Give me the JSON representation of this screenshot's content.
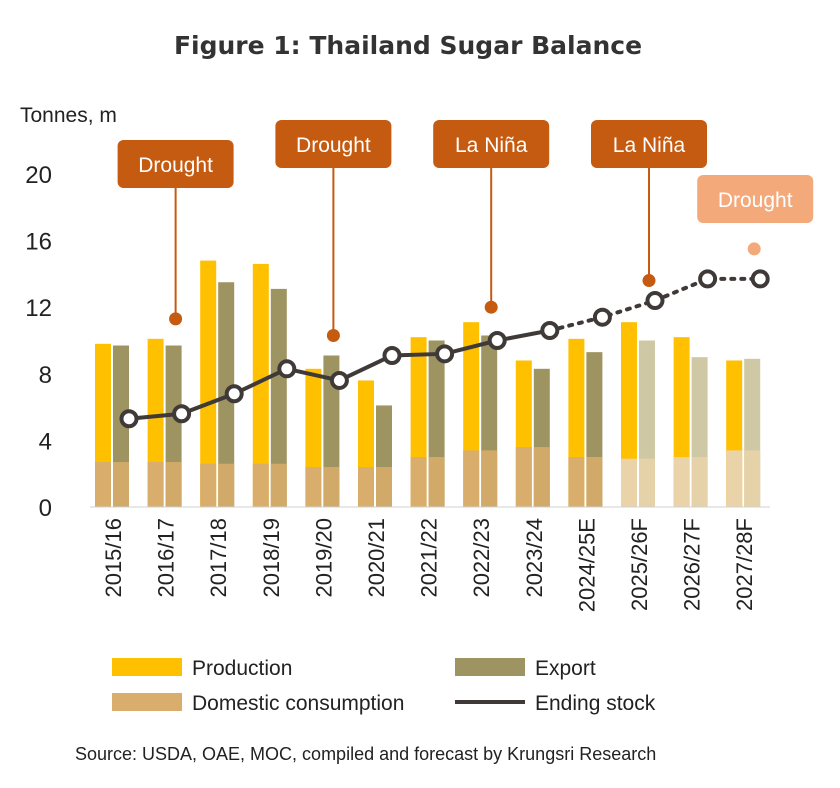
{
  "chart_data": {
    "type": "bar",
    "title": "Figure 1: Thailand Sugar Balance",
    "ylabel": "Tonnes, m",
    "ylim": [
      0,
      20
    ],
    "yticks": [
      0,
      4,
      8,
      12,
      16,
      20
    ],
    "yticklabels": [
      "0",
      "4",
      "8",
      "12",
      "16",
      "20"
    ],
    "categories": [
      "2015/16",
      "2016/17",
      "2017/18",
      "2018/19",
      "2019/20",
      "2020/21",
      "2021/22",
      "2022/23",
      "2023/24",
      "2024/25E",
      "2025/26F",
      "2026/27F",
      "2027/28F"
    ],
    "forecast_from_index": 10,
    "series": [
      {
        "name": "Production",
        "kind": "bar",
        "color": "#FFC000",
        "values": [
          9.8,
          10.1,
          14.8,
          14.6,
          8.3,
          7.6,
          10.2,
          11.1,
          8.8,
          10.1,
          11.1,
          10.2,
          8.8
        ]
      },
      {
        "name": "Export",
        "kind": "bar",
        "color": "#9E9461",
        "forecast_color": "#CFC8A5",
        "values": [
          9.7,
          9.7,
          13.5,
          13.1,
          9.1,
          6.1,
          10.0,
          10.3,
          8.3,
          9.3,
          10.0,
          9.0,
          8.9
        ]
      },
      {
        "name": "Domestic consumption",
        "kind": "bar",
        "color": "#D9AE6C",
        "forecast_color": "#EAD3A8",
        "values": [
          2.7,
          2.7,
          2.6,
          2.6,
          2.4,
          2.4,
          3.0,
          3.4,
          3.6,
          3.0,
          2.9,
          3.0,
          3.4
        ]
      },
      {
        "name": "Ending stock",
        "kind": "line",
        "color": "#3F3A38",
        "values": [
          5.3,
          5.6,
          6.8,
          8.3,
          7.6,
          9.1,
          9.2,
          10.0,
          10.6,
          11.4,
          12.4,
          13.7,
          13.7
        ],
        "dotted_from_index": 8
      }
    ],
    "annotations": [
      {
        "text": "Drought",
        "category_index": 1,
        "value": 11.3,
        "color": "#C55A11"
      },
      {
        "text": "Drought",
        "category_index": 4,
        "value": 10.3,
        "color": "#C55A11"
      },
      {
        "text": "La Niña",
        "category_index": 7,
        "value": 12.0,
        "color": "#C55A11"
      },
      {
        "text": "La Niña",
        "category_index": 10,
        "value": 13.6,
        "color": "#C55A11"
      },
      {
        "text": "Drought",
        "category_index": 12,
        "value": 15.5,
        "color": "#F4A97A",
        "box_pos": "upper"
      }
    ],
    "legend": [
      {
        "label": "Production",
        "type": "bar",
        "color": "#FFC000"
      },
      {
        "label": "Export",
        "type": "bar",
        "color": "#9E9461"
      },
      {
        "label": "Domestic consumption",
        "type": "bar",
        "color": "#D9AE6C"
      },
      {
        "label": "Ending stock",
        "type": "line",
        "color": "#3F3A38"
      }
    ],
    "legend_placement": "bottom",
    "grid": false,
    "source": "Source:  USDA, OAE, MOC, compiled and forecast by Krungsri Research"
  }
}
